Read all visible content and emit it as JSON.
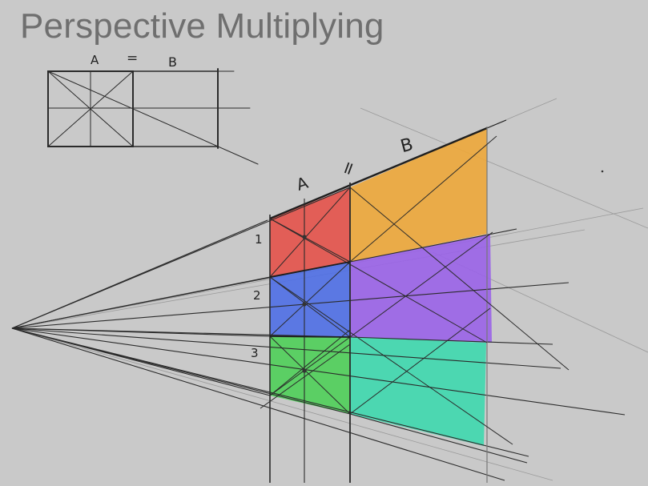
{
  "title": "Perspective Multiplying",
  "small_diagram": {
    "label_a": "A",
    "label_eq": "=",
    "label_b": "B"
  },
  "large_diagram": {
    "label_a": "A",
    "label_eq": "=",
    "label_b": "B",
    "row_labels": [
      "1",
      "2",
      "3"
    ]
  },
  "colors": {
    "background": "#c9c9c9",
    "title": "#6f6f6f",
    "red": "#e4524a",
    "orange": "#eda73a",
    "blue": "#4f6fe6",
    "purple": "#9a63e8",
    "green": "#4fcf59",
    "teal": "#3ed8ae",
    "line": "#2b2b2b"
  }
}
